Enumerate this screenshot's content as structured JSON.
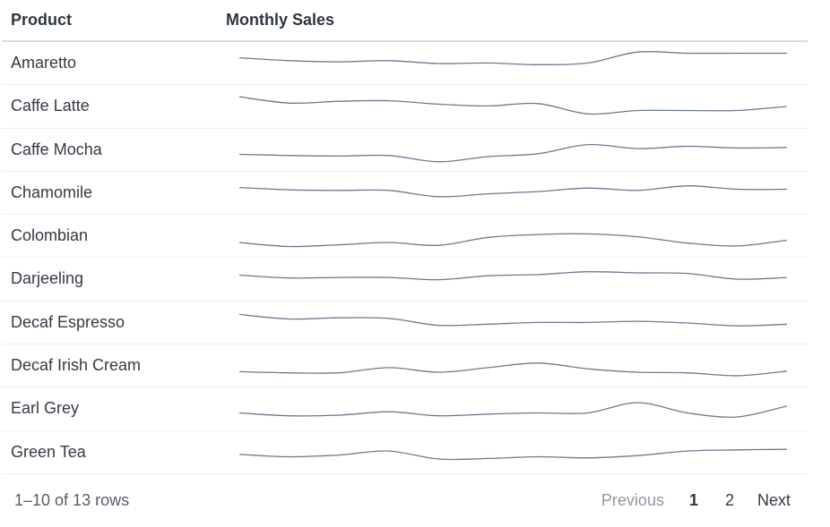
{
  "table": {
    "headers": {
      "product": "Product",
      "sales": "Monthly Sales"
    },
    "rows": [
      {
        "name": "Amaretto",
        "sales": [
          65,
          60,
          58,
          60,
          55,
          56,
          53,
          56,
          75,
          73,
          73,
          73
        ]
      },
      {
        "name": "Caffe Latte",
        "sales": [
          72,
          61,
          64,
          65,
          59,
          56,
          60,
          42,
          48,
          48,
          48,
          55
        ]
      },
      {
        "name": "Caffe Mocha",
        "sales": [
          48,
          46,
          45,
          46,
          35,
          44,
          49,
          65,
          58,
          62,
          59,
          60
        ]
      },
      {
        "name": "Chamomile",
        "sales": [
          65,
          61,
          60,
          60,
          49,
          54,
          58,
          64,
          60,
          68,
          62,
          62
        ]
      },
      {
        "name": "Colombian",
        "sales": [
          44,
          37,
          40,
          44,
          39,
          53,
          58,
          59,
          54,
          43,
          38,
          48
        ]
      },
      {
        "name": "Darjeeling",
        "sales": [
          62,
          57,
          58,
          58,
          54,
          61,
          63,
          68,
          66,
          65,
          55,
          58
        ]
      },
      {
        "name": "Decaf Espresso",
        "sales": [
          70,
          62,
          64,
          63,
          51,
          53,
          56,
          56,
          58,
          55,
          50,
          53
        ]
      },
      {
        "name": "Decaf Irish Cream",
        "sales": [
          45,
          43,
          43,
          52,
          44,
          52,
          60,
          50,
          44,
          43,
          38,
          46
        ]
      },
      {
        "name": "Earl Grey",
        "sales": [
          48,
          43,
          44,
          50,
          43,
          46,
          48,
          48,
          66,
          48,
          41,
          60
        ]
      },
      {
        "name": "Green Tea",
        "sales": [
          52,
          48,
          51,
          58,
          44,
          45,
          48,
          46,
          50,
          58,
          60,
          61
        ]
      }
    ]
  },
  "footer": {
    "row_info": "1–10 of 13 rows",
    "prev": "Previous",
    "page1": "1",
    "page2": "2",
    "next": "Next"
  },
  "colors": {
    "sparkline": "#6a7a8e",
    "current_page": "#2f3640",
    "disabled": "#9097a0"
  }
}
